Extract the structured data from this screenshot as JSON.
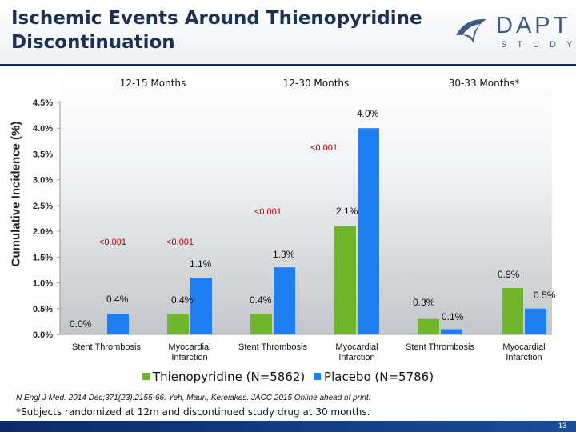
{
  "slide": {
    "title": "Ischemic Events Around Thienopyridine Discontinuation",
    "logo_word": "DAPT",
    "logo_sub": "STUDY",
    "legend": [
      {
        "label": "Thienopyridine (N=5862)",
        "color": "#70b62a"
      },
      {
        "label": "Placebo (N=5786)",
        "color": "#1f7ff0"
      }
    ],
    "citation": "N Engl J Med. 2014 Dec;371(23):2155-66. Yeh, Mauri, Kereiakes. JACC 2015 Online ahead of print.",
    "footnote": "*Subjects randomized at 12m and discontinued study drug at 30 months.",
    "page_number": "13"
  },
  "chart_data": {
    "type": "bar",
    "ylabel": "Cumulative Incidence (%)",
    "ylim": [
      0,
      4.5
    ],
    "yticks": [
      "0.0%",
      "0.5%",
      "1.0%",
      "1.5%",
      "2.0%",
      "2.5%",
      "3.0%",
      "3.5%",
      "4.0%",
      "4.5%"
    ],
    "panels": [
      "12-15 Months",
      "12-30 Months",
      "30-33 Months*"
    ],
    "categories": [
      "Stent Thrombosis",
      "Myocardial Infarction",
      "Stent Thrombosis",
      "Myocardial Infarction",
      "Stent Thrombosis",
      "Myocardial Infarction"
    ],
    "series": [
      {
        "name": "Thienopyridine (N=5862)",
        "color": "#70b62a",
        "values": [
          0.0,
          0.4,
          0.4,
          2.1,
          0.3,
          0.9
        ],
        "labels": [
          "0.0%",
          "0.4%",
          "0.4%",
          "2.1%",
          "0.3%",
          "0.9%"
        ]
      },
      {
        "name": "Placebo (N=5786)",
        "color": "#1f7ff0",
        "values": [
          0.4,
          1.1,
          1.3,
          4.0,
          0.1,
          0.5
        ],
        "labels": [
          "0.4%",
          "1.1%",
          "1.3%",
          "4.0%",
          "0.1%",
          "0.5%"
        ]
      }
    ],
    "pvalues": [
      "<0.001",
      "<0.001",
      "<0.001",
      "<0.001"
    ]
  }
}
